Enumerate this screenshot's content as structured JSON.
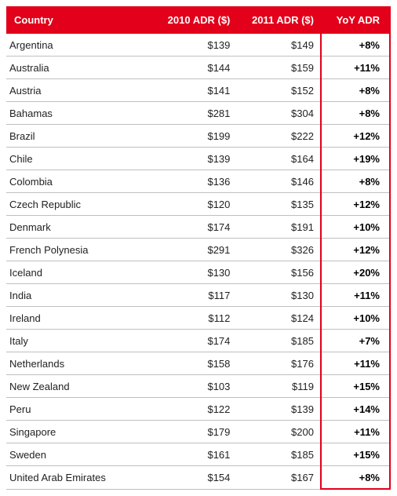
{
  "table": {
    "columns": [
      "Country",
      "2010 ADR ($)",
      "2011 ADR ($)",
      "YoY ADR"
    ],
    "column_align": [
      "left",
      "right",
      "right",
      "right"
    ],
    "header_bg": "#e2001a",
    "header_fg": "#ffffff",
    "row_border_color": "#bfbfbf",
    "highlight_border_color": "#e2001a",
    "font_family": "Arial",
    "header_fontsize": 13,
    "cell_fontsize": 13,
    "yoy_fontweight": 700,
    "rows": [
      {
        "country": "Argentina",
        "adr2010": "$139",
        "adr2011": "$149",
        "yoy": "+8%"
      },
      {
        "country": "Australia",
        "adr2010": "$144",
        "adr2011": "$159",
        "yoy": "+11%"
      },
      {
        "country": "Austria",
        "adr2010": "$141",
        "adr2011": "$152",
        "yoy": "+8%"
      },
      {
        "country": "Bahamas",
        "adr2010": "$281",
        "adr2011": "$304",
        "yoy": "+8%"
      },
      {
        "country": "Brazil",
        "adr2010": "$199",
        "adr2011": "$222",
        "yoy": "+12%"
      },
      {
        "country": "Chile",
        "adr2010": "$139",
        "adr2011": "$164",
        "yoy": "+19%"
      },
      {
        "country": "Colombia",
        "adr2010": "$136",
        "adr2011": "$146",
        "yoy": "+8%"
      },
      {
        "country": "Czech Republic",
        "adr2010": "$120",
        "adr2011": "$135",
        "yoy": "+12%"
      },
      {
        "country": "Denmark",
        "adr2010": "$174",
        "adr2011": "$191",
        "yoy": "+10%"
      },
      {
        "country": "French Polynesia",
        "adr2010": "$291",
        "adr2011": "$326",
        "yoy": "+12%"
      },
      {
        "country": "Iceland",
        "adr2010": "$130",
        "adr2011": "$156",
        "yoy": "+20%"
      },
      {
        "country": "India",
        "adr2010": "$117",
        "adr2011": "$130",
        "yoy": "+11%"
      },
      {
        "country": "Ireland",
        "adr2010": "$112",
        "adr2011": "$124",
        "yoy": "+10%"
      },
      {
        "country": "Italy",
        "adr2010": "$174",
        "adr2011": "$185",
        "yoy": "+7%"
      },
      {
        "country": "Netherlands",
        "adr2010": "$158",
        "adr2011": "$176",
        "yoy": "+11%"
      },
      {
        "country": "New Zealand",
        "adr2010": "$103",
        "adr2011": "$119",
        "yoy": "+15%"
      },
      {
        "country": "Peru",
        "adr2010": "$122",
        "adr2011": "$139",
        "yoy": "+14%"
      },
      {
        "country": "Singapore",
        "adr2010": "$179",
        "adr2011": "$200",
        "yoy": "+11%"
      },
      {
        "country": "Sweden",
        "adr2010": "$161",
        "adr2011": "$185",
        "yoy": "+15%"
      },
      {
        "country": "United Arab Emirates",
        "adr2010": "$154",
        "adr2011": "$167",
        "yoy": "+8%"
      }
    ]
  }
}
